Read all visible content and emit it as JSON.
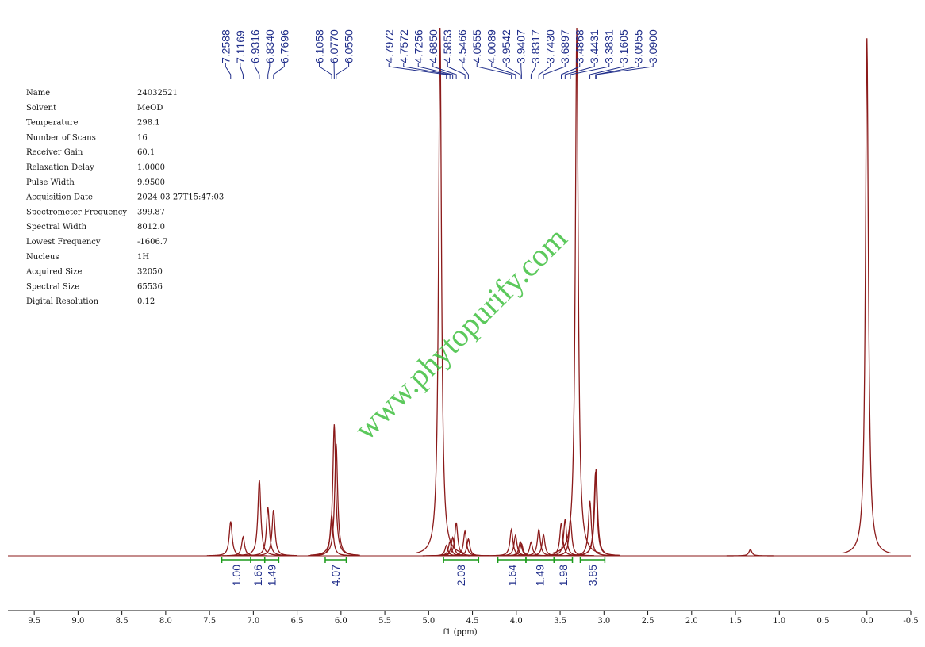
{
  "chart_data": {
    "type": "nmr",
    "x_label": "f1 (ppm)",
    "xlim": [
      9.8,
      -0.5
    ],
    "xticks": [
      9.5,
      {
        "value": 9,
        "label": "9.0"
      },
      8.5,
      {
        "value": 8,
        "label": "8.0"
      },
      7.5,
      {
        "value": 7,
        "label": "7.0"
      },
      6.5,
      {
        "value": 6,
        "label": "6.0"
      },
      5.5,
      {
        "value": 5,
        "label": "5.0"
      },
      4.5,
      {
        "value": 4,
        "label": "4.0"
      },
      3.5,
      {
        "value": 3,
        "label": "3.0"
      },
      2.5,
      {
        "value": 2,
        "label": "2.0"
      },
      1.5,
      {
        "value": 1,
        "label": "1.0"
      },
      0.5,
      {
        "value": 0,
        "label": "0.0"
      },
      -0.5
    ],
    "ylim": [
      0,
      100
    ],
    "color": "#8b1a1a",
    "x": [
      7.2588,
      7.1169,
      6.9316,
      6.834,
      6.7696,
      6.1058,
      6.077,
      6.055,
      4.87,
      4.7972,
      4.7572,
      4.7256,
      4.685,
      4.5853,
      4.5466,
      4.0555,
      4.0089,
      3.9542,
      3.9407,
      3.8317,
      3.743,
      3.6897,
      3.4868,
      3.4431,
      3.3831,
      3.31,
      3.1605,
      3.0955,
      3.09,
      1.33,
      0
    ],
    "values": [
      6.5,
      3.6,
      14.4,
      9.2,
      8.7,
      7.7,
      24.9,
      21.2,
      100,
      2,
      2.7,
      3.5,
      6.3,
      4.7,
      3.2,
      5,
      3.9,
      2.7,
      2.3,
      2.6,
      5,
      4,
      6.2,
      6.9,
      6.9,
      100,
      10.4,
      15.9,
      16.4,
      1.2,
      98
    ],
    "peak_labels": [
      {
        "value": 7.2588,
        "label": "7.2588"
      },
      {
        "value": 7.1169,
        "label": "7.1169"
      },
      {
        "value": 6.9316,
        "label": "6.9316"
      },
      {
        "value": 6.834,
        "label": "6.8340"
      },
      {
        "value": 6.7696,
        "label": "6.7696"
      },
      {
        "value": 6.1058,
        "label": "6.1058"
      },
      {
        "value": 6.077,
        "label": "6.0770"
      },
      {
        "value": 6.055,
        "label": "6.0550"
      },
      {
        "value": 4.7972,
        "label": "4.7972"
      },
      {
        "value": 4.7572,
        "label": "4.7572"
      },
      {
        "value": 4.7256,
        "label": "4.7256"
      },
      {
        "value": 4.685,
        "label": "4.6850"
      },
      {
        "value": 4.5853,
        "label": "4.5853"
      },
      {
        "value": 4.5466,
        "label": "4.5466"
      },
      {
        "value": 4.0555,
        "label": "4.0555"
      },
      {
        "value": 4.0089,
        "label": "4.0089"
      },
      {
        "value": 3.9542,
        "label": "3.9542"
      },
      {
        "value": 3.9407,
        "label": "3.9407"
      },
      {
        "value": 3.8317,
        "label": "3.8317"
      },
      {
        "value": 3.743,
        "label": "3.7430"
      },
      {
        "value": 3.6897,
        "label": "3.6897"
      },
      {
        "value": 3.4868,
        "label": "3.4868"
      },
      {
        "value": 3.4431,
        "label": "3.4431"
      },
      {
        "value": 3.3831,
        "label": "3.3831"
      },
      {
        "value": 3.1605,
        "label": "3.1605"
      },
      {
        "value": 3.0955,
        "label": "3.0955"
      },
      {
        "value": 3.09,
        "label": "3.0900"
      }
    ],
    "integral_color": "#1a9a1a",
    "label_color": "#1f2d8a",
    "integrals": [
      {
        "from": 7.36,
        "to": 7.03,
        "value": 1,
        "label": "1.00"
      },
      {
        "from": 7.03,
        "to": 6.87,
        "value": 1.66,
        "label": "1.66"
      },
      {
        "from": 6.87,
        "to": 6.71,
        "value": 1.49,
        "label": "1.49"
      },
      {
        "from": 6.18,
        "to": 5.94,
        "value": 4.07,
        "label": "4.07"
      },
      {
        "from": 4.83,
        "to": 4.43,
        "value": 2.08,
        "label": "2.08"
      },
      {
        "from": 4.21,
        "to": 3.89,
        "value": 1.64,
        "label": "1.64"
      },
      {
        "from": 3.89,
        "to": 3.57,
        "value": 1.49,
        "label": "1.49"
      },
      {
        "from": 3.57,
        "to": 3.36,
        "value": 1.98,
        "label": "1.98"
      },
      {
        "from": 3.27,
        "to": 2.99,
        "value": 3.85,
        "label": "3.85"
      }
    ]
  },
  "parameters": {
    "rows": [
      [
        "Name",
        "24032521"
      ],
      [
        "Solvent",
        "MeOD"
      ],
      [
        "Temperature",
        "298.1"
      ],
      [
        "Number of Scans",
        "16"
      ],
      [
        "Receiver Gain",
        "60.1"
      ],
      [
        "Relaxation Delay",
        "1.0000"
      ],
      [
        "Pulse Width",
        "9.9500"
      ],
      [
        "Acquisition Date",
        "2024-03-27T15:47:03"
      ],
      [
        "Spectrometer Frequency",
        "399.87"
      ],
      [
        "Spectral Width",
        "8012.0"
      ],
      [
        "Lowest Frequency",
        "-1606.7"
      ],
      [
        "Nucleus",
        "1H"
      ],
      [
        "Acquired Size",
        "32050"
      ],
      [
        "Spectral Size",
        "65536"
      ],
      [
        "Digital Resolution",
        "0.12"
      ]
    ]
  },
  "watermark": "www.phytopurify.com"
}
